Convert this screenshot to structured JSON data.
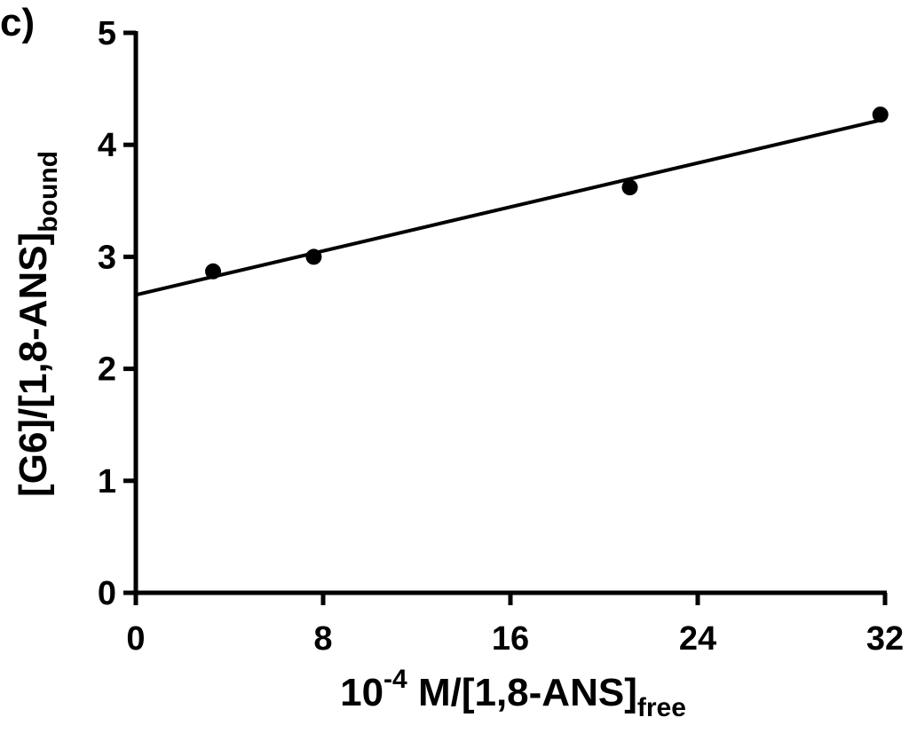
{
  "chart_data": {
    "type": "scatter",
    "panel_label": "c)",
    "xlabel": {
      "main": "10",
      "sup": "-4",
      "mid": " M/[1,8-ANS]",
      "sub": "free"
    },
    "ylabel": {
      "main": "[G6]/[1,8-ANS]",
      "sub": "bound"
    },
    "xlim": [
      0,
      32
    ],
    "ylim": [
      0,
      5
    ],
    "x_ticks": [
      0,
      8,
      16,
      24,
      32
    ],
    "x_tick_labels": [
      "0",
      "8",
      "16",
      "24",
      "32"
    ],
    "y_ticks": [
      0,
      1,
      2,
      3,
      4,
      5
    ],
    "y_tick_labels": [
      "0",
      "1",
      "2",
      "3",
      "4",
      "5"
    ],
    "grid": false,
    "legend": "none",
    "series": [
      {
        "points": [
          {
            "x": 3.3,
            "y": 2.87
          },
          {
            "x": 7.6,
            "y": 3.0
          },
          {
            "x": 21.1,
            "y": 3.62
          },
          {
            "x": 31.8,
            "y": 4.27
          }
        ]
      }
    ],
    "fit_line": {
      "x": [
        0,
        32
      ],
      "y": [
        2.66,
        4.23
      ]
    },
    "colors": {
      "marks": "#000000",
      "background": "#ffffff"
    }
  }
}
